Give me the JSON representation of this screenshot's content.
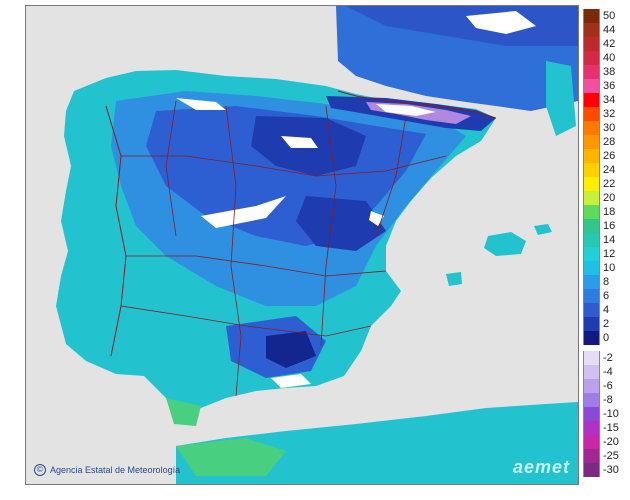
{
  "map": {
    "credit_text": "Agencia Estatal de Meteorología",
    "logo_text": "aemet",
    "colors": {
      "sea": "#e3e3e3",
      "land_warm": "#22c3cf",
      "land_mid": "#2f8fe0",
      "land_cool": "#2d5fd2",
      "land_cold": "#1f3bb0",
      "land_coldest": "#132690",
      "snow": "#ffffff",
      "frost": "#b088e0",
      "south_green": "#48d080",
      "borders": "#8a1c1c"
    }
  },
  "legend": {
    "title": "",
    "items": [
      {
        "label": "50",
        "color": "#7a2a0a"
      },
      {
        "label": "44",
        "color": "#a0301a"
      },
      {
        "label": "42",
        "color": "#bd2a2a"
      },
      {
        "label": "40",
        "color": "#d22a45"
      },
      {
        "label": "38",
        "color": "#e83070"
      },
      {
        "label": "36",
        "color": "#f050a0"
      },
      {
        "label": "34",
        "color": "#ff0000"
      },
      {
        "label": "32",
        "color": "#ff4a00"
      },
      {
        "label": "30",
        "color": "#ff7a00"
      },
      {
        "label": "28",
        "color": "#ff9800"
      },
      {
        "label": "26",
        "color": "#ffb400"
      },
      {
        "label": "24",
        "color": "#ffd000"
      },
      {
        "label": "22",
        "color": "#ffee00"
      },
      {
        "label": "20",
        "color": "#c8f03a"
      },
      {
        "label": "18",
        "color": "#5ddc5a"
      },
      {
        "label": "16",
        "color": "#30c88a"
      },
      {
        "label": "14",
        "color": "#25c8b0"
      },
      {
        "label": "12",
        "color": "#20d0d6"
      },
      {
        "label": "10",
        "color": "#1ec0e6"
      },
      {
        "label": "8",
        "color": "#2a9ce8"
      },
      {
        "label": "6",
        "color": "#2f7ce0"
      },
      {
        "label": "4",
        "color": "#2f5ad0"
      },
      {
        "label": "2",
        "color": "#223cb0"
      },
      {
        "label": "0",
        "color": "#101a80"
      },
      {
        "label": "-2",
        "color": "#e6dcf6"
      },
      {
        "label": "-4",
        "color": "#d2c0f0"
      },
      {
        "label": "-6",
        "color": "#bca0ec"
      },
      {
        "label": "-8",
        "color": "#a07ce6"
      },
      {
        "label": "-10",
        "color": "#8a4ad8"
      },
      {
        "label": "-15",
        "color": "#b030c8"
      },
      {
        "label": "-20",
        "color": "#c828a8"
      },
      {
        "label": "-25",
        "color": "#a02890"
      },
      {
        "label": "-30",
        "color": "#7a2a80"
      }
    ]
  }
}
